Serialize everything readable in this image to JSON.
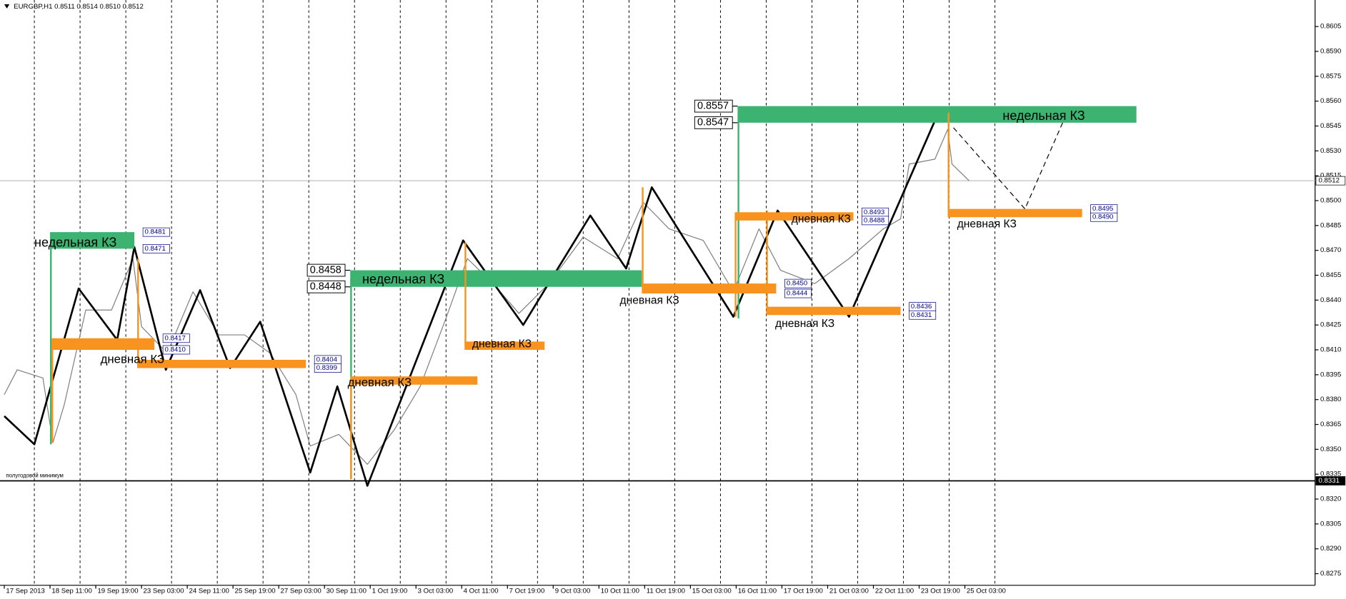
{
  "chart_data": {
    "type": "line",
    "title": "EURGBP,H1  0.8511 0.8514 0.8510 0.8512",
    "xlim": [
      0,
      920
    ],
    "xticks": [
      {
        "value": 3,
        "label": "17 Sep 2013"
      },
      {
        "value": 35,
        "label": "18 Sep 11:00"
      },
      {
        "value": 67,
        "label": "19 Sep 19:00"
      },
      {
        "value": 99,
        "label": "23 Sep 03:00"
      },
      {
        "value": 131,
        "label": "24 Sep 11:00"
      },
      {
        "value": 163,
        "label": "25 Sep 19:00"
      },
      {
        "value": 195,
        "label": "27 Sep 03:00"
      },
      {
        "value": 227,
        "label": "30 Sep 11:00"
      },
      {
        "value": 259,
        "label": "1 Oct 19:00"
      },
      {
        "value": 291,
        "label": "3 Oct 03:00"
      },
      {
        "value": 323,
        "label": "4 Oct 11:00"
      },
      {
        "value": 355,
        "label": "7 Oct 19:00"
      },
      {
        "value": 387,
        "label": "9 Oct 03:00"
      },
      {
        "value": 419,
        "label": "10 Oct 11:00"
      },
      {
        "value": 451,
        "label": "11 Oct 19:00"
      },
      {
        "value": 483,
        "label": "15 Oct 03:00"
      },
      {
        "value": 515,
        "label": "16 Oct 11:00"
      },
      {
        "value": 547,
        "label": "17 Oct 19:00"
      },
      {
        "value": 579,
        "label": "21 Oct 03:00"
      },
      {
        "value": 611,
        "label": "22 Oct 11:00"
      },
      {
        "value": 643,
        "label": "23 Oct 19:00"
      },
      {
        "value": 675,
        "label": "25 Oct 03:00"
      }
    ],
    "ylim": [
      0.8268,
      0.8621
    ],
    "yticks": [
      0.8275,
      {
        "value": 0.829,
        "label": "0.8290"
      },
      0.8305,
      {
        "value": 0.832,
        "label": "0.8320"
      },
      0.8335,
      {
        "value": 0.835,
        "label": "0.8350"
      },
      0.8365,
      {
        "value": 0.838,
        "label": "0.8380"
      },
      0.8395,
      {
        "value": 0.841,
        "label": "0.8410"
      },
      0.8425,
      {
        "value": 0.844,
        "label": "0.8440"
      },
      0.8455,
      {
        "value": 0.847,
        "label": "0.8470"
      },
      0.8485,
      {
        "value": 0.85,
        "label": "0.8500"
      },
      0.8515,
      {
        "value": 0.853,
        "label": "0.8530"
      },
      0.8545,
      {
        "value": 0.856,
        "label": "0.8560"
      },
      0.8575,
      {
        "value": 0.859,
        "label": "0.8590"
      },
      0.8605
    ],
    "grid": true,
    "series": [
      {
        "color": "#7f7f7f",
        "x": [
          3,
          12,
          30,
          37,
          45,
          60,
          78,
          93,
          99,
          117,
          135,
          153,
          171,
          189,
          207,
          217,
          237,
          257,
          276,
          294,
          312,
          327,
          345,
          363,
          384,
          408,
          432,
          450,
          468,
          492,
          513,
          531,
          546,
          570,
          594,
          618,
          630,
          636,
          654,
          663,
          666,
          678
        ],
        "values": [
          0.8383,
          0.8398,
          0.8393,
          0.8354,
          0.8377,
          0.8434,
          0.8434,
          0.8465,
          0.8424,
          0.8408,
          0.8445,
          0.8419,
          0.8419,
          0.8408,
          0.8383,
          0.8352,
          0.8359,
          0.8341,
          0.8362,
          0.8388,
          0.8429,
          0.8465,
          0.845,
          0.8432,
          0.845,
          0.8478,
          0.8465,
          0.8499,
          0.8483,
          0.8476,
          0.8445,
          0.8483,
          0.8458,
          0.845,
          0.8465,
          0.8483,
          0.8489,
          0.8522,
          0.8525,
          0.8543,
          0.8522,
          0.8512
        ]
      },
      {
        "color": "#000000",
        "x": [
          3,
          24,
          55,
          82,
          94,
          116,
          140,
          161,
          182,
          217,
          236,
          257,
          324,
          366,
          413,
          438,
          456,
          513,
          544,
          594,
          657
        ],
        "values": [
          0.837,
          0.8353,
          0.8447,
          0.8416,
          0.8472,
          0.8398,
          0.8446,
          0.8399,
          0.8427,
          0.8336,
          0.8388,
          0.8328,
          0.8476,
          0.8425,
          0.8491,
          0.8459,
          0.8508,
          0.843,
          0.8494,
          0.843,
          0.8554
        ]
      },
      {
        "color": "#000000",
        "dashed": true,
        "x": [
          667,
          717,
          749
        ],
        "values": [
          0.8544,
          0.8495,
          0.8558
        ]
      }
    ],
    "zones": [
      {
        "label": "недельная КЗ",
        "color": "#3cb371",
        "x": [
          35,
          94
        ],
        "prices": [
          0.8481,
          0.8471
        ],
        "price_labels": [
          "0.8481",
          "0.8471"
        ],
        "stem": 0.8353
      },
      {
        "label": "недельная КЗ",
        "color": "#3cb371",
        "x": [
          245,
          449
        ],
        "prices": [
          0.8458,
          0.8448
        ],
        "price_labels": [
          "0.8458",
          "0.8448"
        ],
        "stem": 0.8332
      },
      {
        "label": "недельная КЗ",
        "color": "#3cb371",
        "x": [
          516,
          795
        ],
        "prices": [
          0.8557,
          0.8547
        ],
        "price_labels": [
          "0.8557",
          "0.8547"
        ],
        "stem": 0.8429
      },
      {
        "color": "#f7931e",
        "x": [
          36,
          108
        ],
        "prices": [
          0.8417,
          0.841
        ],
        "price_labels": [
          "0.8417",
          "0.8410"
        ],
        "stem": 0.8354
      },
      {
        "label": "дневная КЗ",
        "color": "#f7931e",
        "x": [
          96,
          214
        ],
        "prices": [
          0.8404,
          0.8399
        ],
        "price_labels": [
          "0.8404",
          "0.8399"
        ],
        "stem": 0.8465
      },
      {
        "label": "дневная КЗ",
        "color": "#f7931e",
        "x": [
          245,
          334
        ],
        "prices": [
          0.8394,
          0.8389
        ],
        "stem": 0.8332
      },
      {
        "label": "дневная КЗ",
        "color": "#f7931e",
        "x": [
          325,
          381
        ],
        "prices": [
          0.8415,
          0.841
        ],
        "stem": 0.8475
      },
      {
        "label": "дневная КЗ",
        "color": "#f7931e",
        "x": [
          449,
          543
        ],
        "prices": [
          0.845,
          0.8444
        ],
        "price_labels": [
          "0.8450",
          "0.8444"
        ],
        "stem": 0.8508
      },
      {
        "label": "дневная КЗ",
        "color": "#f7931e",
        "x": [
          514,
          597
        ],
        "prices": [
          0.8493,
          0.8488
        ],
        "price_labels": [
          "0.8493",
          "0.8488"
        ],
        "stem": 0.843
      },
      {
        "label": "дневная КЗ",
        "color": "#f7931e",
        "x": [
          536,
          630
        ],
        "prices": [
          0.8436,
          0.8431
        ],
        "price_labels": [
          "0.8436",
          "0.8431"
        ],
        "stem": 0.8494
      },
      {
        "label": "дневная КЗ",
        "color": "#f7931e",
        "x": [
          663,
          757
        ],
        "prices": [
          0.8495,
          0.849
        ],
        "price_labels": [
          "0.8495",
          "0.8490"
        ],
        "stem": 0.8553
      }
    ],
    "lines": [
      {
        "label": "полугодовой минимум",
        "value": 0.8331,
        "value_label": "0.8331",
        "color": "#000000"
      },
      {
        "value": 0.8512,
        "value_label": "0.8512",
        "color": "#c0c0c0"
      }
    ]
  }
}
